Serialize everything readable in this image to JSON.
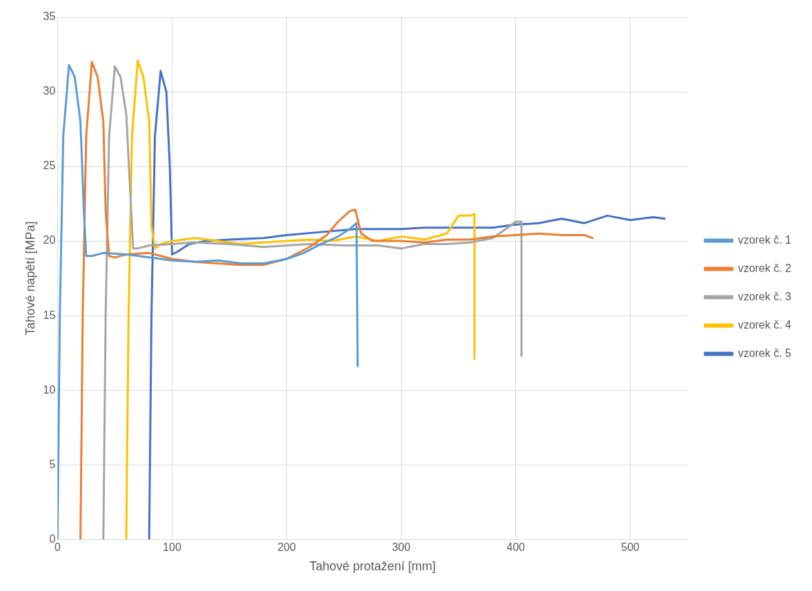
{
  "chart_data": {
    "type": "line",
    "xlabel": "Tahové protažení [mm]",
    "ylabel": "Tahové napětí [MPa]",
    "xlim": [
      0,
      550
    ],
    "xticks": [
      0,
      100,
      200,
      300,
      400,
      500
    ],
    "ylim": [
      0,
      35
    ],
    "yticks": [
      0,
      5,
      10,
      15,
      20,
      25,
      30,
      35
    ],
    "grid": true,
    "legend": "right",
    "marker": "none",
    "line_style": "solid",
    "series": [
      {
        "name": "vzorek č. 1",
        "color": "#5b9bd5",
        "x": [
          0,
          2,
          5,
          10,
          15,
          20,
          23,
          25,
          30,
          40,
          60,
          80,
          100,
          120,
          140,
          160,
          180,
          200,
          215,
          230,
          245,
          255,
          261,
          262
        ],
        "values": [
          0,
          15,
          27,
          31.8,
          31,
          28,
          22,
          19,
          19,
          19.2,
          19.1,
          18.9,
          18.7,
          18.6,
          18.7,
          18.5,
          18.5,
          18.8,
          19.2,
          19.8,
          20.3,
          20.8,
          21.2,
          11.6
        ]
      },
      {
        "name": "vzorek č. 2",
        "color": "#ed7d31",
        "x": [
          20,
          22,
          25,
          30,
          35,
          40,
          42,
          45,
          50,
          60,
          80,
          100,
          120,
          140,
          160,
          180,
          200,
          220,
          235,
          245,
          255,
          260,
          265,
          275,
          300,
          320,
          340,
          360,
          380,
          400,
          420,
          440,
          460,
          467
        ],
        "values": [
          0,
          15,
          27,
          32,
          31,
          28,
          22,
          19,
          18.9,
          19.1,
          19.2,
          18.8,
          18.6,
          18.5,
          18.4,
          18.4,
          18.8,
          19.6,
          20.4,
          21.3,
          22,
          22.1,
          20.5,
          20,
          20,
          19.9,
          20.1,
          20.1,
          20.3,
          20.4,
          20.5,
          20.4,
          20.4,
          20.2
        ]
      },
      {
        "name": "vzorek č. 3",
        "color": "#a5a5a5",
        "x": [
          40,
          42,
          45,
          50,
          55,
          60,
          63,
          66,
          70,
          80,
          100,
          120,
          150,
          180,
          200,
          220,
          250,
          280,
          300,
          320,
          340,
          360,
          380,
          395,
          400,
          405,
          405
        ],
        "values": [
          0,
          15,
          27,
          31.7,
          31,
          28.5,
          24,
          19.5,
          19.5,
          19.7,
          19.8,
          19.9,
          19.8,
          19.6,
          19.7,
          19.8,
          19.7,
          19.7,
          19.5,
          19.8,
          19.8,
          19.9,
          20.2,
          21,
          21.3,
          21.3,
          12.3
        ]
      },
      {
        "name": "vzorek č. 4",
        "color": "#ffc000",
        "x": [
          60,
          62,
          65,
          70,
          75,
          80,
          82,
          85,
          90,
          100,
          120,
          140,
          160,
          180,
          200,
          220,
          240,
          260,
          280,
          300,
          320,
          340,
          350,
          360,
          364,
          364
        ],
        "values": [
          0,
          15,
          27,
          32.1,
          31,
          28,
          21,
          19.5,
          19.8,
          20,
          20.2,
          20,
          19.8,
          19.9,
          20,
          20.1,
          20,
          20.3,
          20,
          20.3,
          20.1,
          20.5,
          21.7,
          21.7,
          21.8,
          12.1
        ]
      },
      {
        "name": "vzorek č. 5",
        "color": "#4472c4",
        "x": [
          80,
          82,
          85,
          90,
          95,
          98,
          100,
          105,
          115,
          130,
          150,
          180,
          200,
          230,
          260,
          280,
          300,
          320,
          340,
          360,
          380,
          400,
          420,
          440,
          460,
          480,
          500,
          520,
          530
        ],
        "values": [
          0,
          15,
          27,
          31.4,
          30,
          25,
          19.1,
          19.3,
          19.8,
          20,
          20.1,
          20.2,
          20.4,
          20.6,
          20.8,
          20.8,
          20.8,
          20.9,
          20.9,
          20.9,
          20.9,
          21.1,
          21.2,
          21.5,
          21.2,
          21.7,
          21.4,
          21.6,
          21.5
        ]
      }
    ]
  }
}
